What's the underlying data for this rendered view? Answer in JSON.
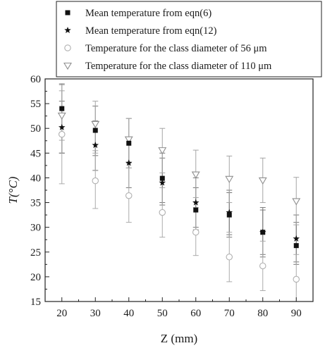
{
  "chart_data": {
    "type": "scatter",
    "xlabel": "Z (mm)",
    "ylabel": "T(°C)",
    "xlim": [
      15,
      95
    ],
    "ylim": [
      15,
      60
    ],
    "xticks": [
      "20",
      "30",
      "40",
      "50",
      "60",
      "70",
      "80",
      "90"
    ],
    "yticks": [
      "15",
      "20",
      "25",
      "30",
      "35",
      "40",
      "45",
      "50",
      "55",
      "60"
    ],
    "grid": false,
    "legend_position": "top",
    "series": [
      {
        "name": "Mean temperature from eqn(6)",
        "marker": "filled-square",
        "color": "#111111",
        "error_bar_color": "#777777",
        "points": [
          {
            "x": 20,
            "y": 54.0,
            "err_low": 45.0,
            "err_high": 59.0
          },
          {
            "x": 30,
            "y": 49.6,
            "err_low": 44.5,
            "err_high": 54.5
          },
          {
            "x": 40,
            "y": 47.0,
            "err_low": 42.0,
            "err_high": 52.0
          },
          {
            "x": 50,
            "y": 39.9,
            "err_low": 35.0,
            "err_high": 45.0
          },
          {
            "x": 60,
            "y": 33.5,
            "err_low": 29.5,
            "err_high": 38.0
          },
          {
            "x": 70,
            "y": 32.5,
            "err_low": 28.0,
            "err_high": 37.0
          },
          {
            "x": 80,
            "y": 29.0,
            "err_low": 24.5,
            "err_high": 34.0
          },
          {
            "x": 90,
            "y": 26.3,
            "err_low": 22.5,
            "err_high": 31.0
          }
        ]
      },
      {
        "name": "Mean temperature from eqn(12)",
        "marker": "filled-star",
        "color": "#111111",
        "error_bar_color": "#777777",
        "points": [
          {
            "x": 20,
            "y": 50.2,
            "err_low": 45.0,
            "err_high": 55.5
          },
          {
            "x": 30,
            "y": 46.6,
            "err_low": 41.5,
            "err_high": 51.5
          },
          {
            "x": 40,
            "y": 43.0,
            "err_low": 38.0,
            "err_high": 48.0
          },
          {
            "x": 50,
            "y": 39.0,
            "err_low": 34.5,
            "err_high": 44.0
          },
          {
            "x": 60,
            "y": 35.0,
            "err_low": 30.0,
            "err_high": 40.0
          },
          {
            "x": 70,
            "y": 33.0,
            "err_low": 28.5,
            "err_high": 37.5
          },
          {
            "x": 80,
            "y": 29.0,
            "err_low": 24.0,
            "err_high": 33.5
          },
          {
            "x": 90,
            "y": 27.7,
            "err_low": 23.0,
            "err_high": 32.5
          }
        ]
      },
      {
        "name": "Temperature for the class diameter of 56 μm",
        "marker": "open-circle",
        "color": "#b0b0b0",
        "error_bar_color": "#aaaaaa",
        "points": [
          {
            "x": 20,
            "y": 48.8,
            "err_low": 38.8,
            "err_high": 58.8
          },
          {
            "x": 30,
            "y": 39.4,
            "err_low": 33.8,
            "err_high": 45.0
          },
          {
            "x": 40,
            "y": 36.4,
            "err_low": 31.0,
            "err_high": 42.0
          },
          {
            "x": 50,
            "y": 33.0,
            "err_low": 28.0,
            "err_high": 38.0
          },
          {
            "x": 60,
            "y": 29.0,
            "err_low": 24.3,
            "err_high": 34.0
          },
          {
            "x": 70,
            "y": 24.0,
            "err_low": 19.0,
            "err_high": 29.0
          },
          {
            "x": 80,
            "y": 22.2,
            "err_low": 17.2,
            "err_high": 27.2
          },
          {
            "x": 90,
            "y": 19.5,
            "err_low": 15.0,
            "err_high": 24.5
          }
        ]
      },
      {
        "name": "Temperature for the class diameter of 110 μm",
        "marker": "open-triangle-down",
        "color": "#8f8f8f",
        "error_bar_color": "#a5a5a5",
        "points": [
          {
            "x": 20,
            "y": 52.6,
            "err_low": 47.6,
            "err_high": 57.6
          },
          {
            "x": 30,
            "y": 50.9,
            "err_low": 45.5,
            "err_high": 55.5
          },
          {
            "x": 40,
            "y": 47.8,
            "err_low": 43.0,
            "err_high": 52.0
          },
          {
            "x": 50,
            "y": 45.6,
            "err_low": 41.0,
            "err_high": 50.0
          },
          {
            "x": 60,
            "y": 40.7,
            "err_low": 36.0,
            "err_high": 45.6
          },
          {
            "x": 70,
            "y": 39.8,
            "err_low": 35.0,
            "err_high": 44.4
          },
          {
            "x": 80,
            "y": 39.5,
            "err_low": 35.0,
            "err_high": 44.0
          },
          {
            "x": 90,
            "y": 35.3,
            "err_low": 30.5,
            "err_high": 40.1
          }
        ]
      }
    ]
  }
}
